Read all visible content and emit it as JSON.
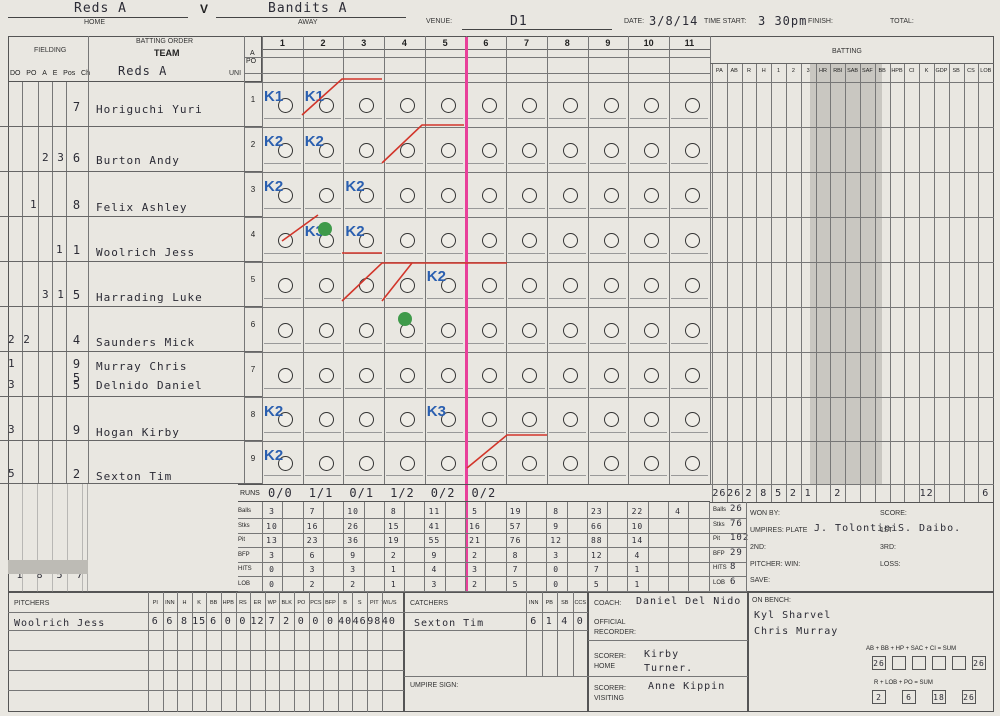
{
  "header": {
    "home_team": "Reds A",
    "v": "V",
    "away_team": "Bandits A",
    "home_label": "HOME",
    "away_label": "AWAY",
    "venue_label": "VENUE:",
    "venue": "D1",
    "date_label": "DATE:",
    "date": "3/8/14",
    "time_start_label": "TIME START:",
    "time_start": "3 30pm",
    "finish_label": "FINISH:",
    "total_label": "TOTAL:"
  },
  "lineup": {
    "fielding_label": "FIELDING",
    "batting_order_label": "BATTING ORDER",
    "team_label": "TEAM",
    "team_name": "Reds A",
    "col_headers": [
      "DO",
      "PO",
      "A",
      "E",
      "Pos",
      "Ch"
    ],
    "uni_label": "Uni",
    "rows": [
      {
        "no": "1",
        "pos": "7",
        "name": "Horiguchi Yuri",
        "fld": ""
      },
      {
        "no": "2",
        "pos": "6",
        "name": "Burton Andy",
        "fld": "2 3"
      },
      {
        "no": "3",
        "pos": "8",
        "name": "Felix Ashley",
        "fld": "1"
      },
      {
        "no": "4",
        "pos": "1",
        "name": "Woolrich Jess",
        "fld": "1"
      },
      {
        "no": "5",
        "pos": "5",
        "name": "Harrading Luke",
        "fld": "3 1"
      },
      {
        "no": "6",
        "pos": "4",
        "name": "Saunders Mick",
        "fld": "2 2"
      },
      {
        "no": "7",
        "pos": "9 5",
        "name": "Murray Chris",
        "fld": "1"
      },
      {
        "no": "",
        "pos": "5",
        "name": "Delnido Daniel",
        "fld": "3"
      },
      {
        "no": "8",
        "pos": "9",
        "name": "Hogan Kirby",
        "fld": "3"
      },
      {
        "no": "9",
        "pos": "2",
        "name": "Sexton Tim",
        "fld": "5"
      }
    ],
    "fielding_totals": [
      "1",
      "8",
      "5",
      "7"
    ]
  },
  "innings": {
    "labels": [
      "1",
      "2",
      "3",
      "4",
      "5",
      "6",
      "7",
      "8",
      "9",
      "10",
      "11"
    ],
    "row_labels": [
      "A",
      "PO"
    ],
    "codes": [
      {
        "row": 0,
        "inn": 0,
        "text": "K1",
        "cls": "blue"
      },
      {
        "row": 0,
        "inn": 1,
        "text": "K1",
        "cls": "blue"
      },
      {
        "row": 1,
        "inn": 0,
        "text": "K2",
        "cls": "blue"
      },
      {
        "row": 1,
        "inn": 1,
        "text": "K2",
        "cls": "blue"
      },
      {
        "row": 2,
        "inn": 0,
        "text": "K2",
        "cls": "blue"
      },
      {
        "row": 2,
        "inn": 2,
        "text": "K2",
        "cls": "blue"
      },
      {
        "row": 3,
        "inn": 1,
        "text": "K3",
        "cls": "blue"
      },
      {
        "row": 3,
        "inn": 2,
        "text": "K2",
        "cls": "blue"
      },
      {
        "row": 4,
        "inn": 4,
        "text": "K2",
        "cls": "blue"
      },
      {
        "row": 7,
        "inn": 0,
        "text": "K2",
        "cls": "blue"
      },
      {
        "row": 7,
        "inn": 4,
        "text": "K3",
        "cls": "blue"
      },
      {
        "row": 8,
        "inn": 0,
        "text": "K2",
        "cls": "blue"
      }
    ],
    "runs_label": "RUNS",
    "runs": [
      "0/0",
      "1/1",
      "0/1",
      "1/2",
      "0/2",
      "0/2"
    ]
  },
  "totals": {
    "rows": [
      {
        "label": "Balls",
        "vals": [
          "3",
          "7",
          "10",
          "8",
          "11",
          "5",
          "19",
          "8",
          "23",
          "22",
          "4"
        ]
      },
      {
        "label": "Stks",
        "vals": [
          "10",
          "16",
          "26",
          "15",
          "41",
          "16",
          "57",
          "9",
          "66",
          "10",
          ""
        ]
      },
      {
        "label": "Pit",
        "vals": [
          "13",
          "23",
          "36",
          "19",
          "55",
          "21",
          "76",
          "12",
          "88",
          "14",
          ""
        ]
      },
      {
        "label": "BFP",
        "vals": [
          "3",
          "6",
          "9",
          "2",
          "9",
          "2",
          "8",
          "3",
          "12",
          "4",
          ""
        ]
      },
      {
        "label": "HITS",
        "vals": [
          "0",
          "3",
          "3",
          "1",
          "4",
          "3",
          "7",
          "0",
          "7",
          "1",
          ""
        ]
      },
      {
        "label": "LOB",
        "vals": [
          "0",
          "2",
          "2",
          "1",
          "3",
          "2",
          "5",
          "0",
          "5",
          "1",
          ""
        ]
      }
    ]
  },
  "batting": {
    "title": "BATTING",
    "cols": [
      "PA",
      "AB",
      "R",
      "H",
      "1",
      "2",
      "3",
      "HR",
      "RBI",
      "SAB",
      "SAF",
      "BB",
      "HPB",
      "CI",
      "K",
      "GDP",
      "SB",
      "CS",
      "LOB"
    ],
    "totals": [
      "26",
      "26",
      "2",
      "8",
      "5",
      "2",
      "1",
      "",
      "2",
      "",
      "",
      "",
      "",
      "",
      "12",
      "",
      "",
      "",
      "6"
    ]
  },
  "summary": {
    "balls_label": "Balls",
    "balls": "26",
    "stks_label": "Stks",
    "stks": "76",
    "pit_label": "Pit",
    "pit": "102",
    "bfp_label": "BFP",
    "bfp": "29",
    "hits_label": "HITS",
    "hits": "8",
    "lob_label": "LOB",
    "lob": "6",
    "won_by_label": "WON BY:",
    "score_label": "SCORE:",
    "umpires_label": "UMPIRES: PLATE",
    "plate_umpire": "J. Tolontini",
    "first_label": "1ST",
    "first_umpire": "S. Daibo.",
    "second_label": "2ND:",
    "third_label": "3RD:",
    "pitcher_win_label": "PITCHER: WIN:",
    "loss_label": "LOSS:",
    "save_label": "SAVE:",
    "on_bench_label": "ON BENCH:",
    "bench": [
      "Kyl Sharvel",
      "Chris Murray"
    ],
    "formula1": "AB + BB + HP + SAC + CI = SUM",
    "formula2": "R + LOB + PO = SUM",
    "formula_vals1": [
      "26",
      "",
      "",
      "",
      "",
      "26"
    ],
    "formula_vals2": [
      "2",
      "6",
      "18",
      "26"
    ]
  },
  "pitchers": {
    "title": "PITCHERS",
    "cols": [
      "PI",
      "INN",
      "H",
      "K",
      "BB",
      "HPB",
      "RS",
      "ER",
      "WP",
      "BLK",
      "PO",
      "PCS",
      "BFP",
      "B",
      "S",
      "PIT",
      "W/L/S"
    ],
    "rows": [
      {
        "name": "Woolrich Jess",
        "vals": [
          "6",
          "6",
          "8",
          "15",
          "6",
          "0",
          "0",
          "12",
          "7",
          "2",
          "0",
          "0",
          "0",
          "40",
          "46",
          "98",
          "40"
        ]
      }
    ]
  },
  "catchers": {
    "title": "CATCHERS",
    "cols": [
      "INN",
      "PB",
      "SB",
      "CCS"
    ],
    "rows": [
      {
        "name": "Sexton Tim",
        "vals": [
          "6",
          "1",
          "4",
          "0"
        ]
      }
    ]
  },
  "officials": {
    "coach_label": "COACH:",
    "coach": "Daniel Del Nido",
    "official_recorder_label": "OFFICIAL RECORDER:",
    "scorer_home_label": "SCORER: HOME",
    "scorer_home": "Kirby Turner.",
    "scorer_visiting_label": "SCORER: VISITING",
    "scorer_visiting": "Anne Kippin",
    "umpire_sign_label": "UMPIRE SIGN:"
  }
}
